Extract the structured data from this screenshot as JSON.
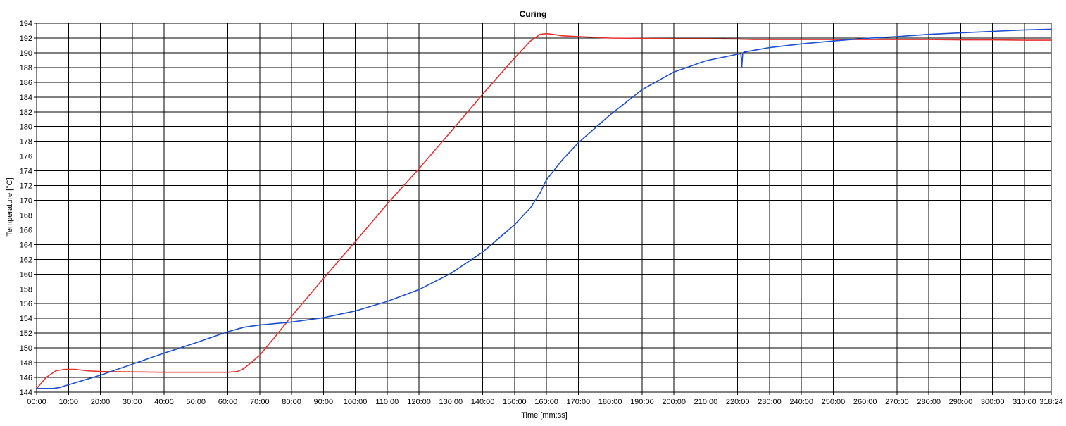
{
  "chart_data": {
    "type": "line",
    "title": "Curing",
    "xlabel": "Time [mm:ss]",
    "ylabel": "Temperature [°C]",
    "x_unit": "minutes",
    "xlim": [
      0,
      318.4
    ],
    "ylim": [
      144,
      194
    ],
    "grid": true,
    "x_ticks": [
      {
        "v": 0,
        "label": "00:00"
      },
      {
        "v": 10,
        "label": "10:00"
      },
      {
        "v": 20,
        "label": "20:00"
      },
      {
        "v": 30,
        "label": "30:00"
      },
      {
        "v": 40,
        "label": "40:00"
      },
      {
        "v": 50,
        "label": "50:00"
      },
      {
        "v": 60,
        "label": "60:00"
      },
      {
        "v": 70,
        "label": "70:00"
      },
      {
        "v": 80,
        "label": "80:00"
      },
      {
        "v": 90,
        "label": "90:00"
      },
      {
        "v": 100,
        "label": "100:00"
      },
      {
        "v": 110,
        "label": "110:00"
      },
      {
        "v": 120,
        "label": "120:00"
      },
      {
        "v": 130,
        "label": "130:00"
      },
      {
        "v": 140,
        "label": "140:00"
      },
      {
        "v": 150,
        "label": "150:00"
      },
      {
        "v": 160,
        "label": "160:00"
      },
      {
        "v": 170,
        "label": "170:00"
      },
      {
        "v": 180,
        "label": "180:00"
      },
      {
        "v": 190,
        "label": "190:00"
      },
      {
        "v": 200,
        "label": "200:00"
      },
      {
        "v": 210,
        "label": "210:00"
      },
      {
        "v": 220,
        "label": "220:00"
      },
      {
        "v": 230,
        "label": "230:00"
      },
      {
        "v": 240,
        "label": "240:00"
      },
      {
        "v": 250,
        "label": "250:00"
      },
      {
        "v": 260,
        "label": "260:00"
      },
      {
        "v": 270,
        "label": "270:00"
      },
      {
        "v": 280,
        "label": "280:00"
      },
      {
        "v": 290,
        "label": "290:00"
      },
      {
        "v": 300,
        "label": "300:00"
      },
      {
        "v": 310,
        "label": "310:00"
      },
      {
        "v": 318.4,
        "label": "318:24"
      }
    ],
    "y_ticks": [
      144,
      146,
      148,
      150,
      152,
      154,
      156,
      158,
      160,
      162,
      164,
      166,
      168,
      170,
      172,
      174,
      176,
      178,
      180,
      182,
      184,
      186,
      188,
      190,
      192,
      194
    ],
    "series": [
      {
        "color": "#e8312f",
        "x": [
          0,
          3,
          6,
          9,
          12,
          16,
          20,
          30,
          40,
          50,
          60,
          63,
          65,
          67,
          70,
          75,
          80,
          90,
          100,
          110,
          120,
          130,
          140,
          150,
          155,
          158,
          160,
          162,
          165,
          170,
          180,
          190,
          200,
          210,
          220,
          225,
          230,
          240,
          250,
          260,
          270,
          280,
          290,
          300,
          310,
          318.4
        ],
        "y": [
          144.5,
          146.0,
          146.9,
          147.1,
          147.1,
          146.9,
          146.8,
          146.75,
          146.7,
          146.7,
          146.7,
          146.8,
          147.2,
          147.9,
          149.0,
          151.6,
          154.3,
          159.4,
          164.4,
          169.5,
          174.3,
          179.3,
          184.4,
          189.3,
          191.6,
          192.5,
          192.6,
          192.5,
          192.3,
          192.2,
          192.0,
          191.95,
          191.9,
          191.9,
          191.85,
          191.8,
          191.8,
          191.8,
          191.8,
          191.8,
          191.8,
          191.8,
          191.75,
          191.75,
          191.7,
          191.7
        ]
      },
      {
        "color": "#1f4fcf",
        "x": [
          0,
          5,
          7,
          10,
          20,
          30,
          40,
          50,
          60,
          65,
          70,
          80,
          90,
          100,
          110,
          120,
          130,
          140,
          150,
          155,
          158,
          160,
          165,
          170,
          175,
          180,
          190,
          200,
          210,
          220,
          221,
          221.3,
          221.6,
          222,
          230,
          240,
          250,
          260,
          270,
          280,
          290,
          300,
          310,
          318.4
        ],
        "y": [
          144.5,
          144.5,
          144.6,
          145.0,
          146.3,
          147.8,
          149.3,
          150.7,
          152.2,
          152.8,
          153.1,
          153.5,
          154.1,
          155.0,
          156.3,
          157.9,
          160.1,
          163.0,
          166.7,
          169.0,
          171.0,
          172.8,
          175.5,
          177.8,
          179.7,
          181.6,
          185.0,
          187.4,
          188.9,
          189.8,
          189.9,
          188.0,
          190.0,
          190.1,
          190.7,
          191.2,
          191.6,
          191.95,
          192.2,
          192.5,
          192.7,
          192.9,
          193.1,
          193.2
        ]
      }
    ]
  }
}
